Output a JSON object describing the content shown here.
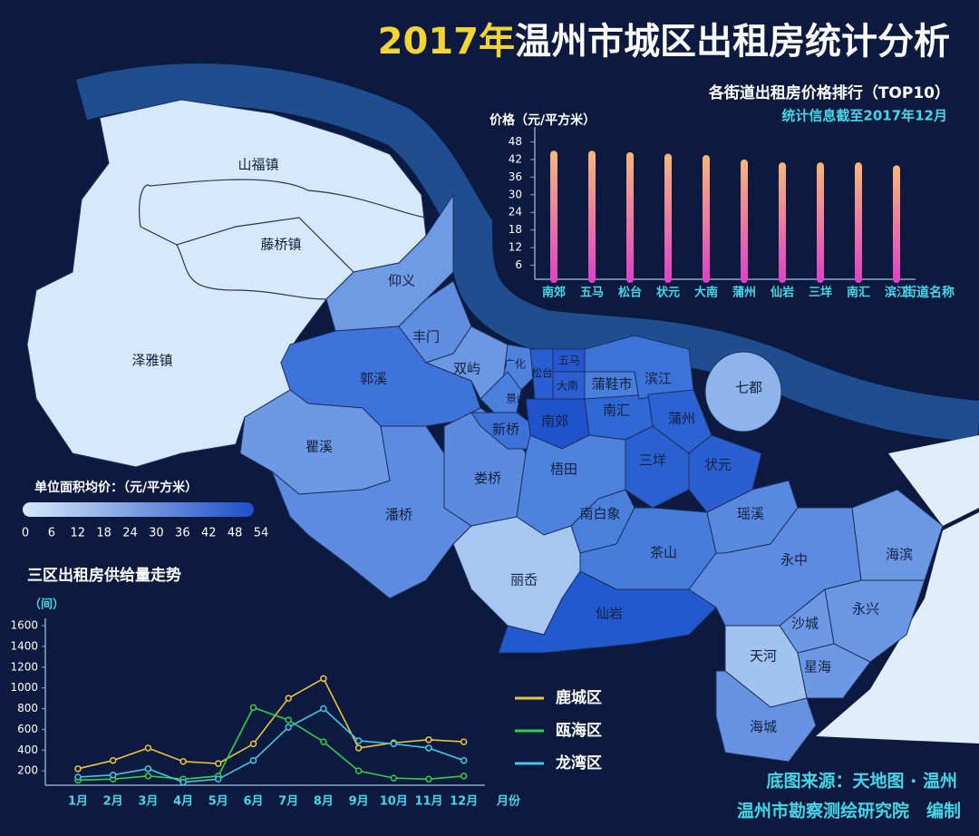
{
  "title": {
    "highlight": "2017年",
    "text": "温州市城区出租房统计分析"
  },
  "source": [
    "底图来源：天地图 · 温州",
    "温州市勘察测绘研究院　编制"
  ],
  "map": {
    "districts": [
      {
        "name": "山福镇",
        "color": "#d6e8fb"
      },
      {
        "name": "藤桥镇",
        "color": "#d6e8fb"
      },
      {
        "name": "泽雅镇",
        "color": "#d6e8fb"
      },
      {
        "name": "仰义",
        "color": "#6f9be4"
      },
      {
        "name": "郭溪",
        "color": "#3e73d9"
      },
      {
        "name": "瞿溪",
        "color": "#6d98e3"
      },
      {
        "name": "潘桥",
        "color": "#5d8be0"
      },
      {
        "name": "娄桥",
        "color": "#5c8ade"
      },
      {
        "name": "丰门",
        "color": "#5f8de0"
      },
      {
        "name": "双屿",
        "color": "#6b97e3"
      },
      {
        "name": "广化",
        "color": "#4f82dd"
      },
      {
        "name": "景山",
        "color": "#4b7fdc"
      },
      {
        "name": "新桥",
        "color": "#3e72d8"
      },
      {
        "name": "松台",
        "color": "#2a5ed2"
      },
      {
        "name": "五马",
        "color": "#2657d0"
      },
      {
        "name": "大南",
        "color": "#2a5ed2"
      },
      {
        "name": "蒲鞋市",
        "color": "#4a7fdc"
      },
      {
        "name": "南郊",
        "color": "#1f52cc"
      },
      {
        "name": "南汇",
        "color": "#3068d5"
      },
      {
        "name": "滨江",
        "color": "#3d72d8"
      },
      {
        "name": "蒲州",
        "color": "#2d62d2"
      },
      {
        "name": "三垟",
        "color": "#2b60d1"
      },
      {
        "name": "状元",
        "color": "#2b5fd1"
      },
      {
        "name": "梧田",
        "color": "#4e82dc"
      },
      {
        "name": "南白象",
        "color": "#4a7fdc"
      },
      {
        "name": "茶山",
        "color": "#477cdb"
      },
      {
        "name": "丽岙",
        "color": "#a7c6f2"
      },
      {
        "name": "仙岩",
        "color": "#2359ce"
      },
      {
        "name": "瑶溪",
        "color": "#5989df"
      },
      {
        "name": "永中",
        "color": "#5d8be0"
      },
      {
        "name": "海滨",
        "color": "#6b97e3"
      },
      {
        "name": "永兴",
        "color": "#6a96e2"
      },
      {
        "name": "沙城",
        "color": "#6d98e3"
      },
      {
        "name": "星海",
        "color": "#6d98e3"
      },
      {
        "name": "天河",
        "color": "#a2c2f0"
      },
      {
        "name": "海城",
        "color": "#6792e1"
      },
      {
        "name": "七都",
        "color": "#8fb4ec"
      }
    ]
  },
  "color_scale": {
    "title": "单位面积均价：（元/平方米）",
    "colors": [
      "#d6e8fb",
      "#1f4fc8"
    ],
    "ticks": [
      0,
      6,
      12,
      18,
      24,
      30,
      36,
      42,
      48,
      54
    ]
  },
  "chart_data": [
    {
      "type": "bar",
      "title": "各街道出租房价格排行（TOP10）",
      "subtitle": "统计信息截至2017年12月",
      "y_label": "价格（元/平方米）",
      "x_label": "街道名称",
      "categories": [
        "南郊",
        "五马",
        "松台",
        "状元",
        "大南",
        "蒲州",
        "仙岩",
        "三垟",
        "南汇",
        "滨江"
      ],
      "values": [
        45,
        45,
        44.5,
        44,
        43.5,
        42,
        41,
        41,
        41,
        40
      ],
      "colors": [
        "#f7b77a",
        "#e040c8"
      ],
      "ylim": [
        0,
        50
      ],
      "yticks": [
        6,
        12,
        18,
        24,
        30,
        36,
        42,
        48
      ],
      "grid": false
    },
    {
      "type": "line",
      "title": "三区出租房供给量走势",
      "y_label": "（间）",
      "x_label": "月份",
      "categories": [
        "1月",
        "2月",
        "3月",
        "4月",
        "5月",
        "6月",
        "7月",
        "8月",
        "9月",
        "10月",
        "11月",
        "12月"
      ],
      "series": [
        {
          "name": "鹿城区",
          "color": "#e8c542",
          "values": [
            220,
            300,
            420,
            290,
            270,
            460,
            900,
            1090,
            420,
            470,
            500,
            480
          ]
        },
        {
          "name": "瓯海区",
          "color": "#2fd14a",
          "values": [
            110,
            120,
            150,
            120,
            150,
            810,
            690,
            480,
            200,
            130,
            120,
            150
          ]
        },
        {
          "name": "龙湾区",
          "color": "#3fc8e6",
          "values": [
            140,
            160,
            220,
            90,
            120,
            300,
            620,
            800,
            490,
            460,
            420,
            300
          ]
        }
      ],
      "ylim": [
        0,
        1600
      ],
      "yticks": [
        200,
        400,
        600,
        800,
        1000,
        1200,
        1400,
        1600
      ],
      "grid": false
    }
  ]
}
